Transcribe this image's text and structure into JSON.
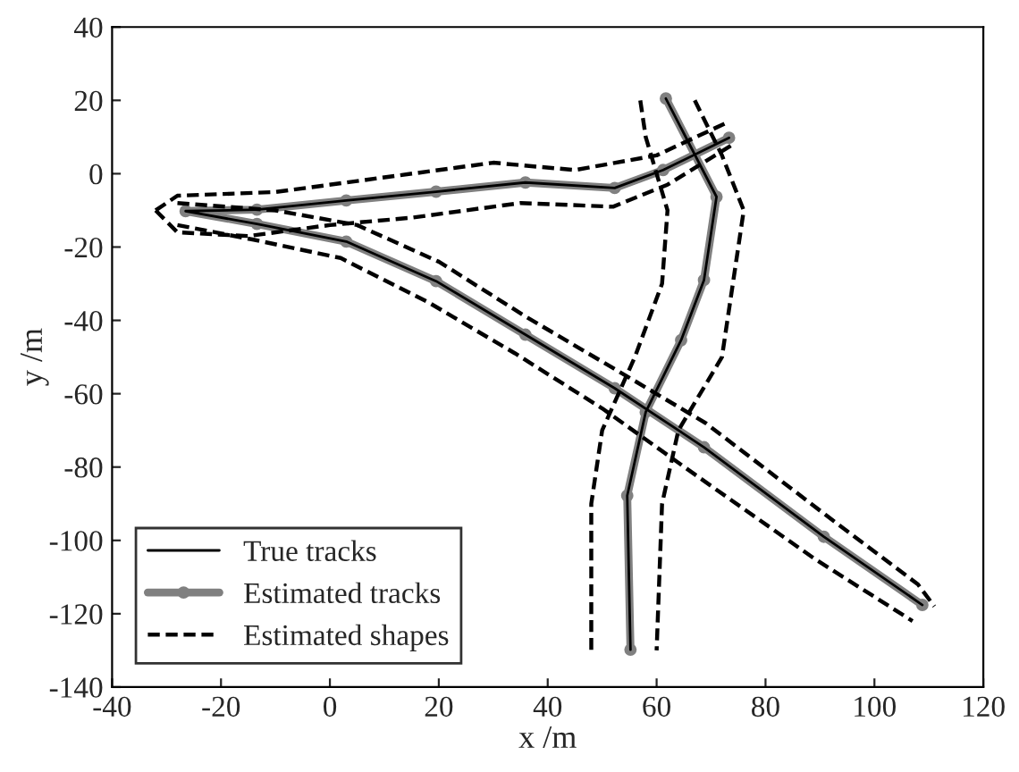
{
  "chart_data": {
    "type": "line",
    "xlabel": "x /m",
    "ylabel": "y /m",
    "xlim": [
      -40,
      120
    ],
    "ylim": [
      -140,
      40
    ],
    "xticks": [
      -40,
      -20,
      0,
      20,
      40,
      60,
      80,
      100,
      120
    ],
    "yticks": [
      -140,
      -120,
      -100,
      -80,
      -60,
      -40,
      -20,
      0,
      20,
      40
    ],
    "grid": false,
    "legend": "bottom left",
    "series": [
      {
        "name": "True tracks",
        "color": "#000000",
        "marker": "none",
        "line_style": "solid",
        "x": [
          108.8,
          90.7,
          68.7,
          52.3,
          35.9,
          19.5,
          3,
          -13.4,
          -26.5,
          -13.4,
          3,
          19.5,
          35.9,
          52.3,
          61.2,
          73.3
        ],
        "values": [
          -117.6,
          -99,
          -74.6,
          -58.5,
          -43.9,
          -29.3,
          -18.5,
          -13.7,
          -10.2,
          -9.8,
          -7.3,
          -4.9,
          -2.4,
          -3.9,
          1,
          9.8
        ]
      },
      {
        "color": "#000000",
        "marker": "none",
        "line_style": "solid",
        "x": [
          61.7,
          71,
          68.7,
          64.5,
          58,
          54.6,
          55.2
        ],
        "values": [
          20.5,
          -6.3,
          -29,
          -45.4,
          -65,
          -87.8,
          -129.8
        ]
      },
      {
        "name": "Estimated tracks",
        "color": "#808080",
        "marker": "circle",
        "line_style": "solid",
        "x": [
          108.8,
          90.7,
          68.7,
          52.3,
          35.9,
          19.5,
          3,
          -13.4,
          -26.5,
          -13.4,
          3,
          19.5,
          35.9,
          52.3,
          61.2,
          73.3
        ],
        "values": [
          -117.6,
          -99,
          -74.6,
          -58.5,
          -43.9,
          -29.3,
          -18.5,
          -13.7,
          -10.2,
          -9.8,
          -7.3,
          -4.9,
          -2.4,
          -3.9,
          1,
          9.8
        ]
      },
      {
        "color": "#808080",
        "marker": "circle",
        "line_style": "solid",
        "x": [
          61.7,
          71,
          68.7,
          64.5,
          58,
          54.6,
          55.2
        ],
        "values": [
          20.5,
          -6.3,
          -29,
          -45.4,
          -65,
          -87.8,
          -129.8
        ]
      },
      {
        "name": "Estimated shapes",
        "color": "#000000",
        "marker": "none",
        "line_style": "dashed",
        "x": [
          -32,
          -28,
          -10,
          10,
          30,
          45,
          60,
          73
        ],
        "values": [
          -10,
          -6,
          -5,
          -1,
          3,
          1,
          5,
          14
        ]
      },
      {
        "color": "#000000",
        "marker": "none",
        "line_style": "dashed",
        "x": [
          -32,
          -28,
          -15,
          0,
          15,
          35,
          52,
          62,
          74
        ],
        "values": [
          -10,
          -16,
          -17,
          -14,
          -12,
          -8,
          -9,
          -3,
          8
        ]
      },
      {
        "color": "#000000",
        "marker": "none",
        "line_style": "dashed",
        "x": [
          -28,
          -10,
          5,
          20,
          36,
          52,
          69,
          91,
          108,
          111
        ],
        "values": [
          -8,
          -10,
          -14,
          -24,
          -39,
          -53,
          -68,
          -93,
          -112,
          -118
        ]
      },
      {
        "color": "#000000",
        "marker": "none",
        "line_style": "dashed",
        "x": [
          -28,
          -14,
          2,
          18,
          34,
          50,
          67,
          89,
          107
        ],
        "values": [
          -14,
          -18,
          -23,
          -35,
          -49,
          -64,
          -82,
          -105,
          -122
        ]
      },
      {
        "color": "#000000",
        "marker": "none",
        "line_style": "dashed",
        "x": [
          57,
          58,
          62,
          61,
          56,
          50,
          48,
          48
        ],
        "values": [
          20,
          10,
          -10,
          -30,
          -50,
          -70,
          -90,
          -130
        ]
      },
      {
        "color": "#000000",
        "marker": "none",
        "line_style": "dashed",
        "x": [
          67,
          72,
          76,
          74,
          72,
          64,
          61,
          60
        ],
        "values": [
          20,
          5,
          -10,
          -30,
          -50,
          -70,
          -90,
          -130
        ]
      }
    ]
  }
}
